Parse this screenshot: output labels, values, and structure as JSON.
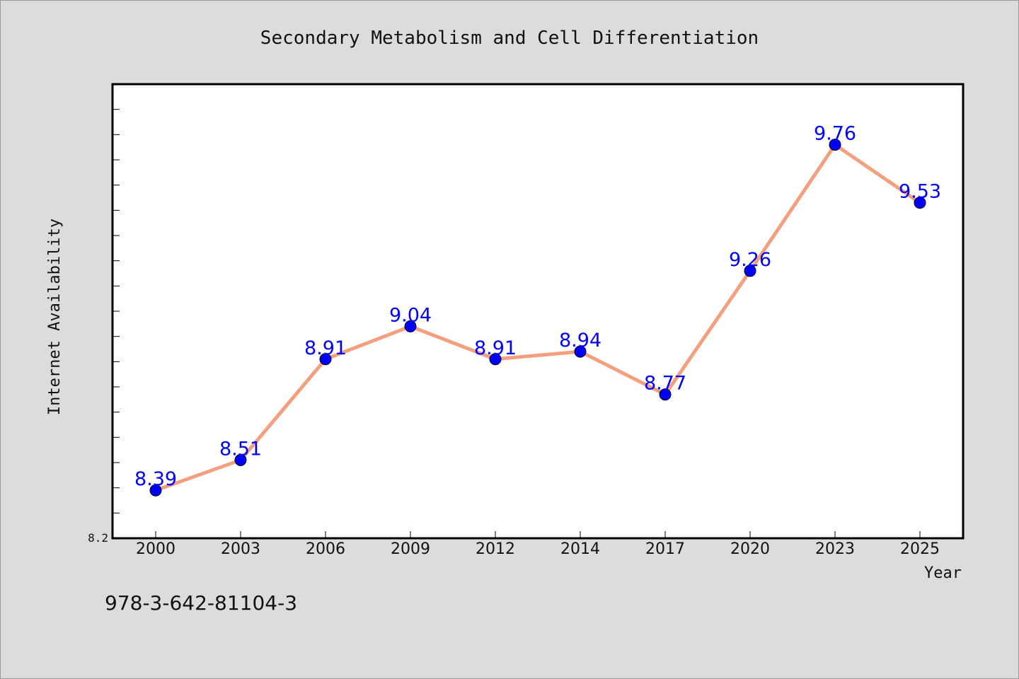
{
  "chart_data": {
    "type": "line",
    "title": "Secondary Metabolism and Cell Differentiation",
    "xlabel": "Year",
    "ylabel": "Internet Availability",
    "categories": [
      "2000",
      "2003",
      "2006",
      "2009",
      "2012",
      "2014",
      "2017",
      "2020",
      "2023",
      "2025"
    ],
    "series": [
      {
        "values": [
          8.39,
          8.51,
          8.91,
          9.04,
          8.91,
          8.94,
          8.77,
          9.26,
          9.76,
          9.53
        ]
      }
    ],
    "data_labels": [
      "8.39",
      "8.51",
      "8.91",
      "9.04",
      "8.91",
      "8.94",
      "8.77",
      "9.26",
      "9.76",
      "9.53"
    ],
    "ylim": [
      8.2,
      10.0
    ],
    "y_tick_labels": [
      "8.2"
    ],
    "grid": false,
    "legend": "none",
    "colors": {
      "line": "#f4a07e",
      "marker": "#0000ff",
      "marker_edge": "#000000",
      "label": "#0000ff",
      "plot_background": "#ffffff",
      "figure_background": "#dcdcdc"
    }
  },
  "footer": {
    "note": "978-3-642-81104-3"
  }
}
